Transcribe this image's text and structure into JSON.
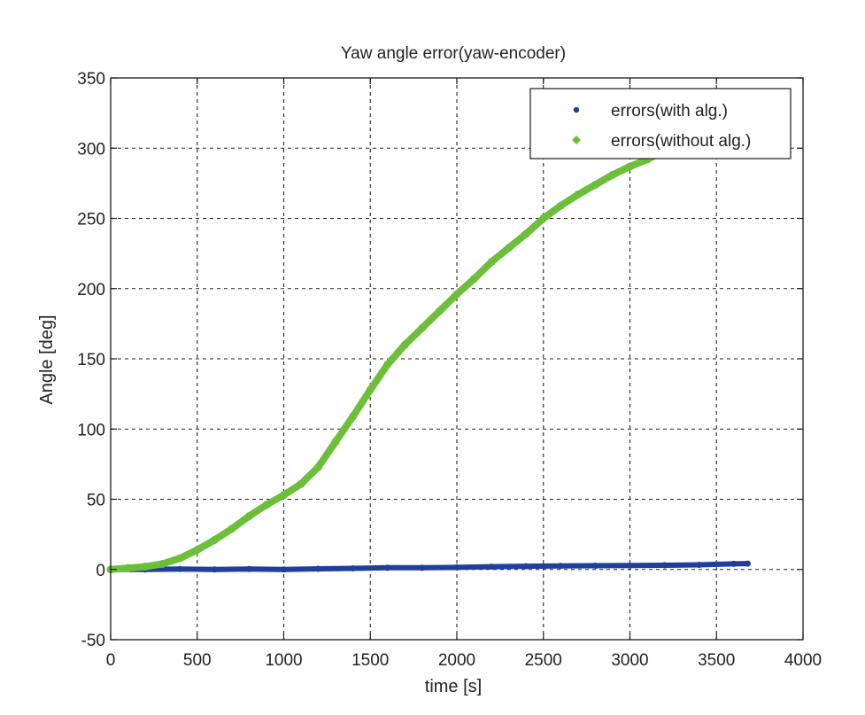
{
  "chart_data": {
    "type": "scatter",
    "title": "Yaw angle error(yaw-encoder)",
    "xlabel": "time [s]",
    "ylabel": "Angle [deg]",
    "xlim": [
      0,
      4000
    ],
    "ylim": [
      -50,
      350
    ],
    "xticks": [
      0,
      500,
      1000,
      1500,
      2000,
      2500,
      3000,
      3500,
      4000
    ],
    "yticks": [
      -50,
      0,
      50,
      100,
      150,
      200,
      250,
      300,
      350
    ],
    "xtick_labels": [
      "0",
      "500",
      "1000",
      "1500",
      "2000",
      "2500",
      "3000",
      "3500",
      "4000"
    ],
    "ytick_labels": [
      "-50",
      "0",
      "50",
      "100",
      "150",
      "200",
      "250",
      "300",
      "350"
    ],
    "grid": true,
    "grid_style": "dashed",
    "legend_position": "top-right",
    "series": [
      {
        "name": "errors(with alg.)",
        "color": "#1f3f9a",
        "marker": "dot",
        "x": [
          0,
          200,
          400,
          600,
          800,
          1000,
          1200,
          1400,
          1600,
          1800,
          2000,
          2200,
          2400,
          2600,
          2800,
          3000,
          3200,
          3400,
          3600,
          3680
        ],
        "y": [
          0,
          0,
          0.3,
          0,
          0.3,
          0,
          0.5,
          0.8,
          1.2,
          1.2,
          1.5,
          2,
          2.3,
          2.5,
          2.7,
          2.8,
          3,
          3.3,
          4,
          4.2
        ]
      },
      {
        "name": "errors(without alg.)",
        "color": "#6dbf3a",
        "marker": "dot",
        "x": [
          0,
          100,
          200,
          300,
          400,
          500,
          600,
          700,
          800,
          900,
          1000,
          1100,
          1200,
          1300,
          1400,
          1500,
          1600,
          1700,
          1800,
          1900,
          2000,
          2100,
          2200,
          2300,
          2400,
          2500,
          2600,
          2700,
          2800,
          2900,
          3000,
          3100,
          3150
        ],
        "y": [
          0,
          1,
          2,
          4,
          8,
          14,
          21,
          29,
          38,
          46,
          53,
          61,
          73,
          91,
          109,
          128,
          146,
          160,
          172,
          184,
          196,
          207,
          219,
          229,
          239,
          250,
          259,
          267,
          274,
          281,
          287,
          292,
          295
        ]
      }
    ]
  }
}
